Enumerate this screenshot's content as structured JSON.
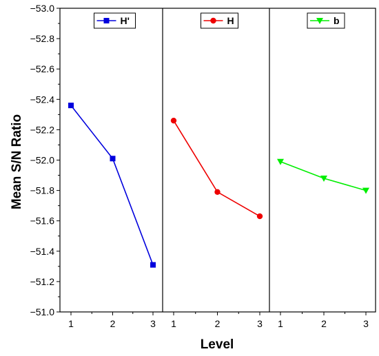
{
  "chart_data": {
    "type": "line",
    "xlabel": "Level",
    "ylabel": "Mean S/N Ratio",
    "ylim": [
      -53.0,
      -51.0
    ],
    "y_axis_inverted": true,
    "y_ticks": [
      "−53.0",
      "−52.8",
      "−52.6",
      "−52.4",
      "−52.2",
      "−52.0",
      "−51.8",
      "−51.6",
      "−51.4",
      "−51.2",
      "−51.0"
    ],
    "y_tick_values": [
      -53.0,
      -52.8,
      -52.6,
      -52.4,
      -52.2,
      -52.0,
      -51.8,
      -51.6,
      -51.4,
      -51.2,
      -51.0
    ],
    "x_ticks": [
      "1",
      "2",
      "3"
    ],
    "legend_placement": "top-center of each panel",
    "grid": false,
    "panels": [
      {
        "name": "H'",
        "color": "#0000dd",
        "marker": "square",
        "x": [
          1,
          2,
          3
        ],
        "values": [
          -52.36,
          -52.01,
          -51.31
        ]
      },
      {
        "name": "H",
        "color": "#ee0000",
        "marker": "circle",
        "x": [
          1,
          2,
          3
        ],
        "values": [
          -52.26,
          -51.79,
          -51.63
        ]
      },
      {
        "name": "b",
        "color": "#00ee00",
        "marker": "triangle-down",
        "x": [
          1,
          2,
          3
        ],
        "values": [
          -51.99,
          -51.88,
          -51.8
        ]
      }
    ]
  }
}
